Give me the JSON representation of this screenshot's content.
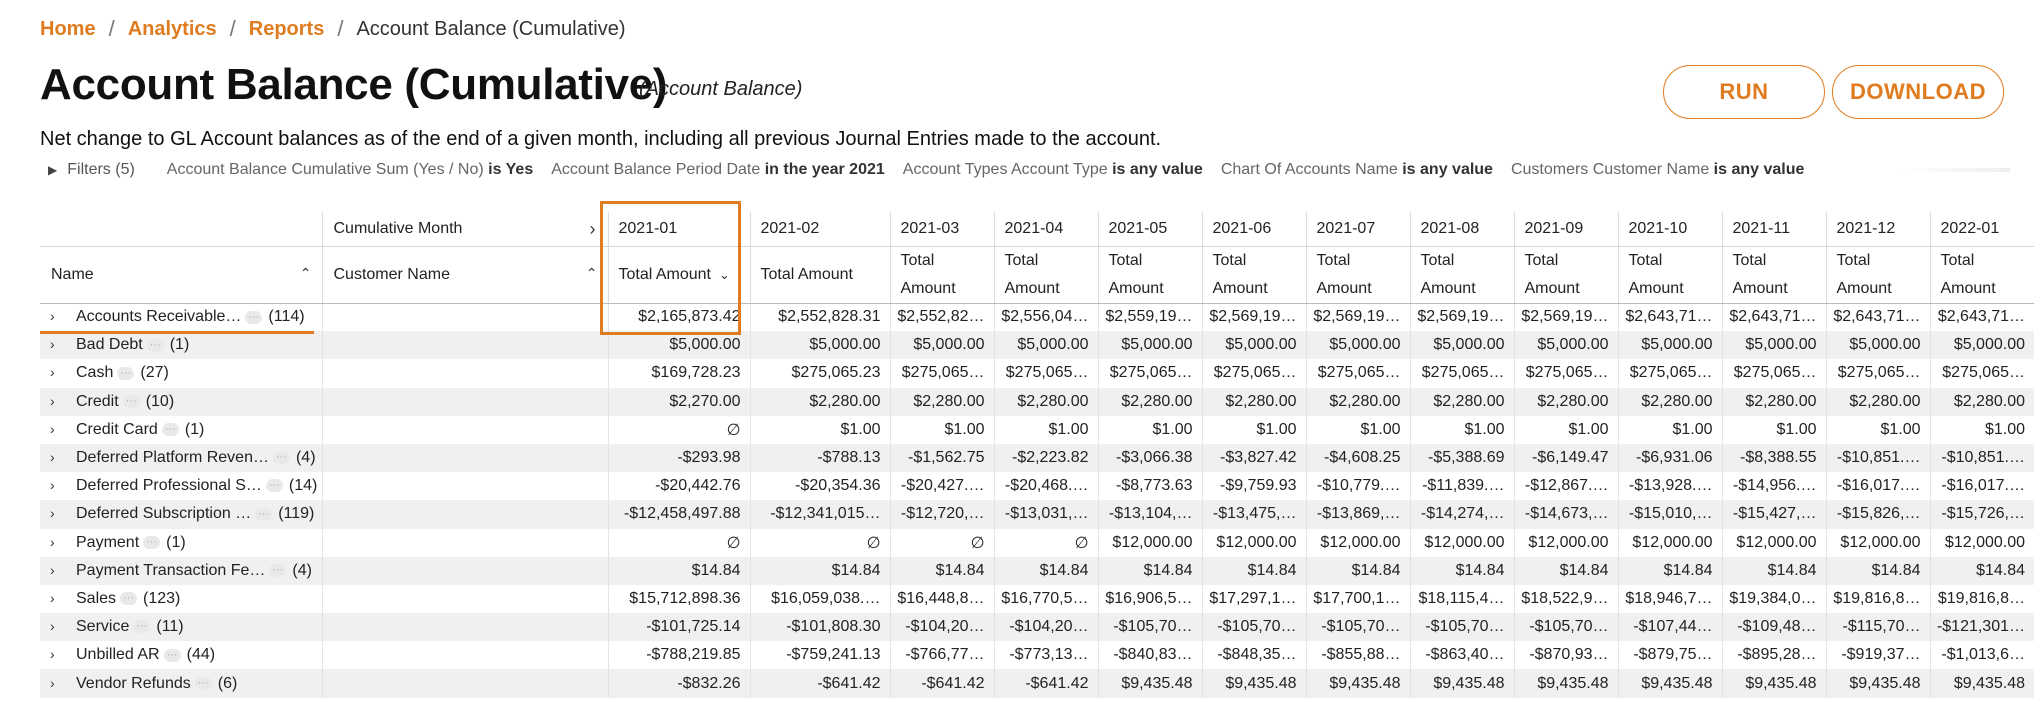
{
  "breadcrumb": [
    "Home",
    "Analytics",
    "Reports"
  ],
  "breadcrumb_current": "Account Balance (Cumulative)",
  "title": "Account Balance (Cumulative)",
  "subtitle": "(Account Balance)",
  "buttons": {
    "run": "RUN",
    "download": "DOWNLOAD"
  },
  "description": "Net change to GL Account balances as of the end of a given month, including all previous Journal Entries made to the account.",
  "filters": {
    "label": "Filters (5)",
    "items": [
      {
        "field": "Account Balance Cumulative Sum (Yes / No)",
        "cond": "is Yes"
      },
      {
        "field": "Account Balance Period Date",
        "cond": "in the year 2021"
      },
      {
        "field": "Account Types Account Type",
        "cond": "is any value"
      },
      {
        "field": "Chart Of Accounts Name",
        "cond": "is any value"
      },
      {
        "field": "Customers Customer Name",
        "cond": "is any value"
      }
    ]
  },
  "table": {
    "cumulative_month_label": "Cumulative Month",
    "name_header": "Name",
    "customer_header": "Customer Name",
    "months": [
      "2021-01",
      "2021-02",
      "2021-03",
      "2021-04",
      "2021-05",
      "2021-06",
      "2021-07",
      "2021-08",
      "2021-09",
      "2021-10",
      "2021-11",
      "2021-12",
      "2022-01"
    ],
    "measure": "Total Amount",
    "rows": [
      {
        "name": "Accounts Receivable…",
        "count": "(114)",
        "values": [
          "$2,165,873.42",
          "$2,552,828.31",
          "$2,552,82…",
          "$2,556,04…",
          "$2,559,19…",
          "$2,569,19…",
          "$2,569,19…",
          "$2,569,19…",
          "$2,569,19…",
          "$2,643,71…",
          "$2,643,71…",
          "$2,643,71…",
          "$2,643,71…"
        ]
      },
      {
        "name": "Bad Debt",
        "count": "(1)",
        "values": [
          "$5,000.00",
          "$5,000.00",
          "$5,000.00",
          "$5,000.00",
          "$5,000.00",
          "$5,000.00",
          "$5,000.00",
          "$5,000.00",
          "$5,000.00",
          "$5,000.00",
          "$5,000.00",
          "$5,000.00",
          "$5,000.00"
        ]
      },
      {
        "name": "Cash",
        "count": "(27)",
        "values": [
          "$169,728.23",
          "$275,065.23",
          "$275,065…",
          "$275,065…",
          "$275,065…",
          "$275,065…",
          "$275,065…",
          "$275,065…",
          "$275,065…",
          "$275,065…",
          "$275,065…",
          "$275,065…",
          "$275,065…"
        ]
      },
      {
        "name": "Credit",
        "count": "(10)",
        "values": [
          "$2,270.00",
          "$2,280.00",
          "$2,280.00",
          "$2,280.00",
          "$2,280.00",
          "$2,280.00",
          "$2,280.00",
          "$2,280.00",
          "$2,280.00",
          "$2,280.00",
          "$2,280.00",
          "$2,280.00",
          "$2,280.00"
        ]
      },
      {
        "name": "Credit Card",
        "count": "(1)",
        "values": [
          "∅",
          "$1.00",
          "$1.00",
          "$1.00",
          "$1.00",
          "$1.00",
          "$1.00",
          "$1.00",
          "$1.00",
          "$1.00",
          "$1.00",
          "$1.00",
          "$1.00"
        ]
      },
      {
        "name": "Deferred Platform Reven…",
        "count": "(4)",
        "values": [
          "-$293.98",
          "-$788.13",
          "-$1,562.75",
          "-$2,223.82",
          "-$3,066.38",
          "-$3,827.42",
          "-$4,608.25",
          "-$5,388.69",
          "-$6,149.47",
          "-$6,931.06",
          "-$8,388.55",
          "-$10,851.…",
          "-$10,851.…"
        ]
      },
      {
        "name": "Deferred Professional S…",
        "count": "(14)",
        "values": [
          "-$20,442.76",
          "-$20,354.36",
          "-$20,427.…",
          "-$20,468.…",
          "-$8,773.63",
          "-$9,759.93",
          "-$10,779.…",
          "-$11,839.…",
          "-$12,867.…",
          "-$13,928.…",
          "-$14,956.…",
          "-$16,017.…",
          "-$16,017.…"
        ]
      },
      {
        "name": "Deferred Subscription …",
        "count": "(119)",
        "values": [
          "-$12,458,497.88",
          "-$12,341,015…",
          "-$12,720,…",
          "-$13,031,…",
          "-$13,104,…",
          "-$13,475,…",
          "-$13,869,…",
          "-$14,274,…",
          "-$14,673,…",
          "-$15,010,…",
          "-$15,427,…",
          "-$15,826,…",
          "-$15,726,…"
        ]
      },
      {
        "name": "Payment",
        "count": "(1)",
        "values": [
          "∅",
          "∅",
          "∅",
          "∅",
          "$12,000.00",
          "$12,000.00",
          "$12,000.00",
          "$12,000.00",
          "$12,000.00",
          "$12,000.00",
          "$12,000.00",
          "$12,000.00",
          "$12,000.00"
        ]
      },
      {
        "name": "Payment Transaction Fe…",
        "count": "(4)",
        "values": [
          "$14.84",
          "$14.84",
          "$14.84",
          "$14.84",
          "$14.84",
          "$14.84",
          "$14.84",
          "$14.84",
          "$14.84",
          "$14.84",
          "$14.84",
          "$14.84",
          "$14.84"
        ]
      },
      {
        "name": "Sales",
        "count": "(123)",
        "values": [
          "$15,712,898.36",
          "$16,059,038.…",
          "$16,448,8…",
          "$16,770,5…",
          "$16,906,5…",
          "$17,297,1…",
          "$17,700,1…",
          "$18,115,4…",
          "$18,522,9…",
          "$18,946,7…",
          "$19,384,0…",
          "$19,816,8…",
          "$19,816,8…"
        ]
      },
      {
        "name": "Service",
        "count": "(11)",
        "values": [
          "-$101,725.14",
          "-$101,808.30",
          "-$104,20…",
          "-$104,20…",
          "-$105,70…",
          "-$105,70…",
          "-$105,70…",
          "-$105,70…",
          "-$105,70…",
          "-$107,44…",
          "-$109,48…",
          "-$115,70…",
          "-$121,301…"
        ]
      },
      {
        "name": "Unbilled AR",
        "count": "(44)",
        "values": [
          "-$788,219.85",
          "-$759,241.13",
          "-$766,77…",
          "-$773,13…",
          "-$840,83…",
          "-$848,35…",
          "-$855,88…",
          "-$863,40…",
          "-$870,93…",
          "-$879,75…",
          "-$895,28…",
          "-$919,37…",
          "-$1,013,6…"
        ]
      },
      {
        "name": "Vendor Refunds",
        "count": "(6)",
        "values": [
          "-$832.26",
          "-$641.42",
          "-$641.42",
          "-$641.42",
          "$9,435.48",
          "$9,435.48",
          "$9,435.48",
          "$9,435.48",
          "$9,435.48",
          "$9,435.48",
          "$9,435.48",
          "$9,435.48",
          "$9,435.48"
        ]
      }
    ]
  }
}
